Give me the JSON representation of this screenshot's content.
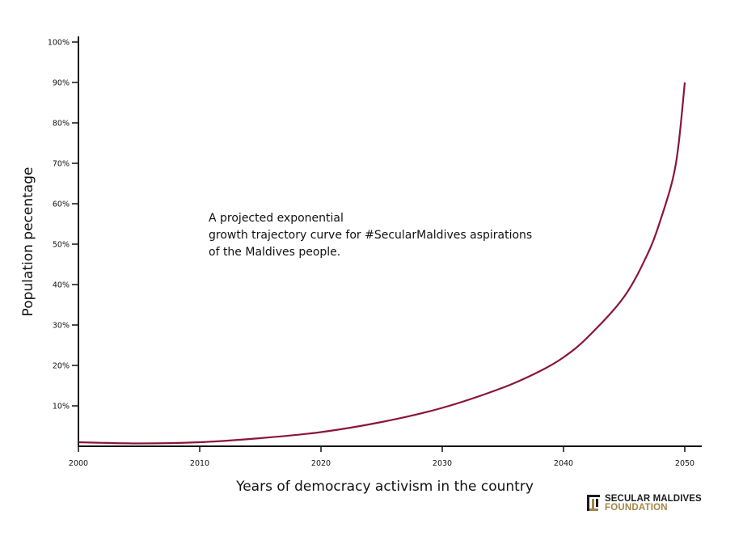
{
  "chart_data": {
    "type": "line",
    "title": "",
    "annotation": [
      "A projected exponential",
      "growth trajectory curve for #SecularMaldives aspirations",
      "of the Maldives people."
    ],
    "xlabel": "Years of democracy activism in the country",
    "ylabel": "Population pecentage",
    "xlim": [
      2000,
      2050
    ],
    "ylim": [
      0,
      100
    ],
    "x_ticks": [
      {
        "value": 2000,
        "label": "2000"
      },
      {
        "value": 2010,
        "label": "2010"
      },
      {
        "value": 2020,
        "label": "2020"
      },
      {
        "value": 2030,
        "label": "2030"
      },
      {
        "value": 2040,
        "label": "2040"
      },
      {
        "value": 2050,
        "label": "2050"
      }
    ],
    "y_ticks": [
      {
        "value": 10,
        "label": "10%"
      },
      {
        "value": 20,
        "label": "20%"
      },
      {
        "value": 30,
        "label": "30%"
      },
      {
        "value": 40,
        "label": "40%"
      },
      {
        "value": 50,
        "label": "50%"
      },
      {
        "value": 60,
        "label": "60%"
      },
      {
        "value": 70,
        "label": "70%"
      },
      {
        "value": 80,
        "label": "80%"
      },
      {
        "value": 90,
        "label": "90%"
      },
      {
        "value": 100,
        "label": "100%"
      }
    ],
    "grid": false,
    "line_color": "#8a1538",
    "series": [
      {
        "x": [
          2000,
          2005,
          2010,
          2015,
          2020,
          2025,
          2030,
          2035,
          2038,
          2040,
          2042,
          2045,
          2047,
          2048,
          2049,
          2049.5,
          2050
        ],
        "values": [
          1,
          0.7,
          1,
          2,
          3.5,
          6,
          9.5,
          14.5,
          18.5,
          22,
          27,
          37,
          48,
          56,
          66,
          75,
          90
        ]
      }
    ]
  },
  "logo": {
    "line1": "SECULAR MALDIVES",
    "line2": "FOUNDATION",
    "colors": {
      "dark": "#1c1c1c",
      "gold": "#a3864a"
    }
  }
}
